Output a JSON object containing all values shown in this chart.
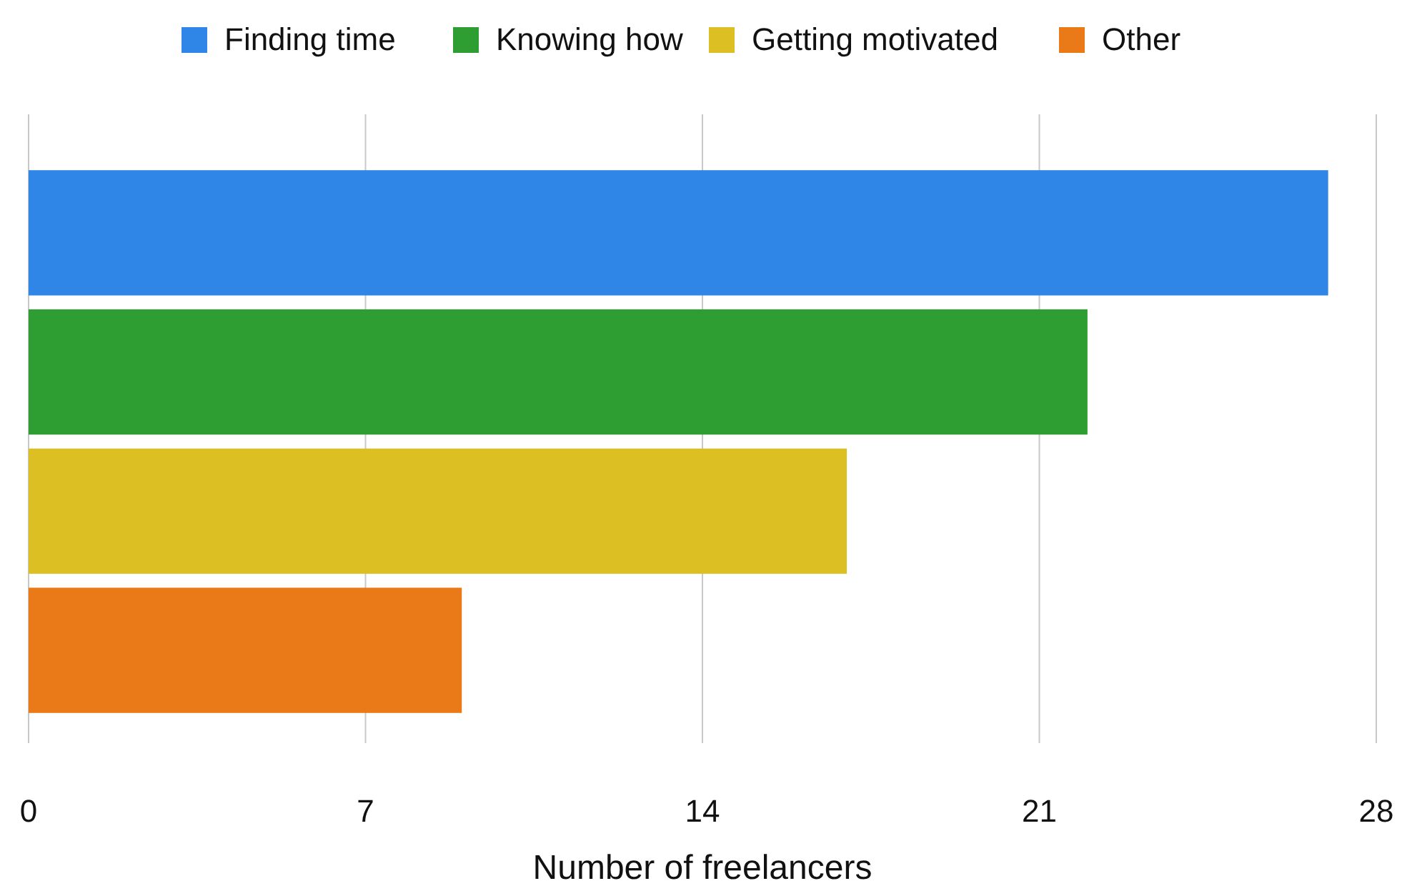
{
  "chart_data": {
    "type": "bar",
    "orientation": "horizontal",
    "xlabel": "Number of freelancers",
    "categories": [
      null
    ],
    "series": [
      {
        "name": "Finding time",
        "color": "#2f86e6",
        "values": [
          27
        ]
      },
      {
        "name": "Knowing how",
        "color": "#2f9e32",
        "values": [
          22
        ]
      },
      {
        "name": "Getting motivated",
        "color": "#dcbf22",
        "values": [
          17
        ]
      },
      {
        "name": "Other",
        "color": "#e97a17",
        "values": [
          9
        ]
      }
    ],
    "xlim": [
      0,
      28
    ],
    "xticks": [
      0,
      7,
      14,
      21,
      28
    ],
    "grid": "x",
    "legend": "top"
  }
}
